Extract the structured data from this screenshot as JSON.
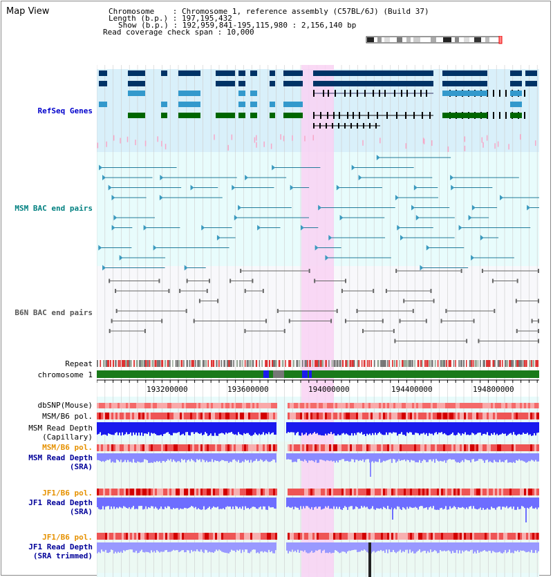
{
  "title": "Map View",
  "info": {
    "chromosome_label": "Chromosome",
    "chromosome_value": "Chromosome 1, reference assembly (C57BL/6J) (Build 37)",
    "length_label": "Length (b.p.)",
    "length_value": "197,195,432",
    "show_label": "Show (b.p.)",
    "show_value": "192,959,841-195,115,980 : 2,156,140 bp",
    "span_label": "Read coverage check span",
    "span_value": "10,000"
  },
  "tracks": {
    "refseq": "RefSeq Genes",
    "msm_bac": "MSM BAC end pairs",
    "b6n_bac": "B6N BAC end pairs",
    "repeat": "Repeat",
    "chromosome": "chromosome 1",
    "dbsnp": "dbSNP(Mouse)",
    "msm_b6_pol_cap": "MSM/B6 pol.",
    "msm_depth_cap": "MSM Read Depth\n(Capillary)",
    "msm_b6_pol_sra": "MSM/B6 pol.",
    "msm_depth_sra": "MSM Read Depth\n(SRA)",
    "jf1_b6_pol": "JF1/B6 pol.",
    "jf1_depth_sra": "JF1 Read Depth\n(SRA)",
    "jf1_b6_pol_trim": "JF1/B6 pol.",
    "jf1_depth_trim": "JF1 Read Depth\n(SRA trimmed)"
  },
  "axis": {
    "ticks": [
      "193200000",
      "193600000",
      "194000000",
      "194400000",
      "194800000"
    ]
  },
  "colors": {
    "refseq_label": "#0000cc",
    "msm_bac_label": "#008080",
    "b6n_bac_label": "#666666",
    "orange_label": "#e69100",
    "blue_label": "#000099",
    "highlight": "#f9d2f3",
    "refseq_bg": "#d9f0fa",
    "msm_bg": "#e8fcfc",
    "b6n_bg": "#f8f8fb",
    "gene_navy": "#003366",
    "gene_blue": "#3399cc",
    "gene_green": "#006600",
    "depth_blue": "#1a1aee",
    "depth_light": "#8080ff"
  }
}
